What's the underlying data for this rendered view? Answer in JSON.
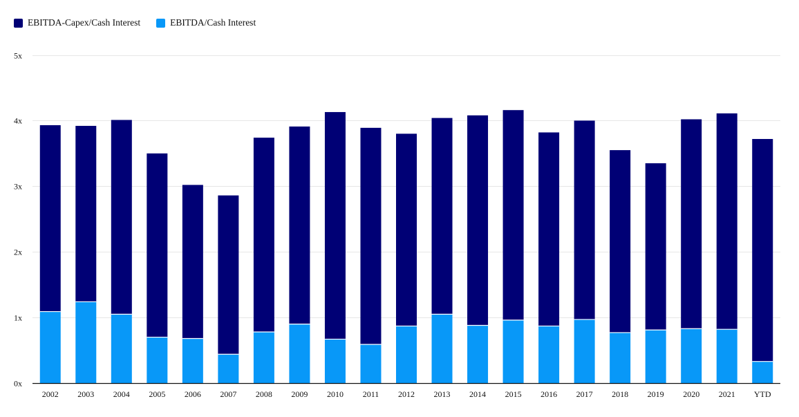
{
  "chart_data": {
    "type": "bar",
    "stacked": true,
    "title": "",
    "xlabel": "",
    "ylabel": "",
    "ylim": [
      0,
      5
    ],
    "yticks": [
      0,
      1,
      2,
      3,
      4,
      5
    ],
    "ytick_labels": [
      "0x",
      "1x",
      "2x",
      "3x",
      "4x",
      "5x"
    ],
    "grid": true,
    "legend_position": "top-left",
    "categories": [
      "2002",
      "2003",
      "2004",
      "2005",
      "2006",
      "2007",
      "2008",
      "2009",
      "2010",
      "2011",
      "2012",
      "2013",
      "2014",
      "2015",
      "2016",
      "2017",
      "2018",
      "2019",
      "2020",
      "2021",
      "YTD"
    ],
    "series": [
      {
        "name": "EBITDA/Cash Interest",
        "color": "#0898f8",
        "stack_order": "bottom",
        "values": [
          1.09,
          1.24,
          1.05,
          0.7,
          0.68,
          0.44,
          0.78,
          0.9,
          0.67,
          0.59,
          0.87,
          1.05,
          0.88,
          0.96,
          0.87,
          0.97,
          0.77,
          0.81,
          0.83,
          0.82,
          0.33
        ]
      },
      {
        "name": "EBITDA-Capex/Cash Interest",
        "color": "#000075",
        "stack_order": "top",
        "values": [
          2.84,
          2.68,
          2.96,
          2.8,
          2.34,
          2.42,
          2.96,
          3.01,
          3.46,
          3.3,
          2.93,
          2.99,
          3.2,
          3.2,
          2.95,
          3.03,
          2.78,
          2.54,
          3.19,
          3.29,
          3.39
        ]
      }
    ]
  },
  "legend": {
    "items": [
      {
        "label": "EBITDA-Capex/Cash Interest",
        "color": "#000075"
      },
      {
        "label": "EBITDA/Cash Interest",
        "color": "#0898f8"
      }
    ]
  }
}
